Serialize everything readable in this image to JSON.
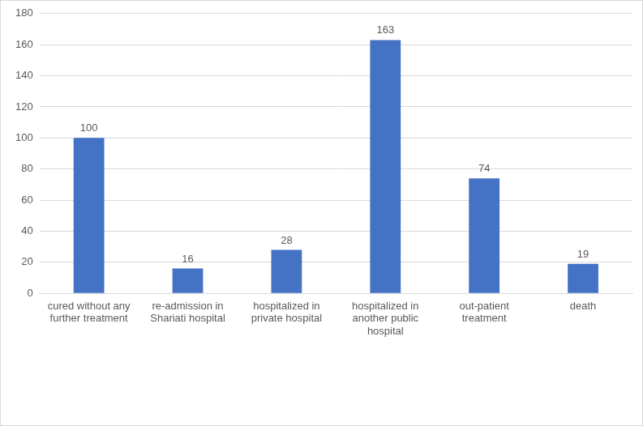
{
  "chart_data": {
    "type": "bar",
    "categories": [
      "cured without any further treatment",
      "re-admission in Shariati hospital",
      "hospitalized in private hospital",
      "hospitalized in another public hospital",
      "out-patient treatment",
      "death"
    ],
    "values": [
      100,
      16,
      28,
      163,
      74,
      19
    ],
    "color": "#4472c4",
    "ylim": [
      0,
      180
    ],
    "yticks": [
      0,
      20,
      40,
      60,
      80,
      100,
      120,
      140,
      160,
      180
    ],
    "grid": true,
    "data_labels": true
  }
}
